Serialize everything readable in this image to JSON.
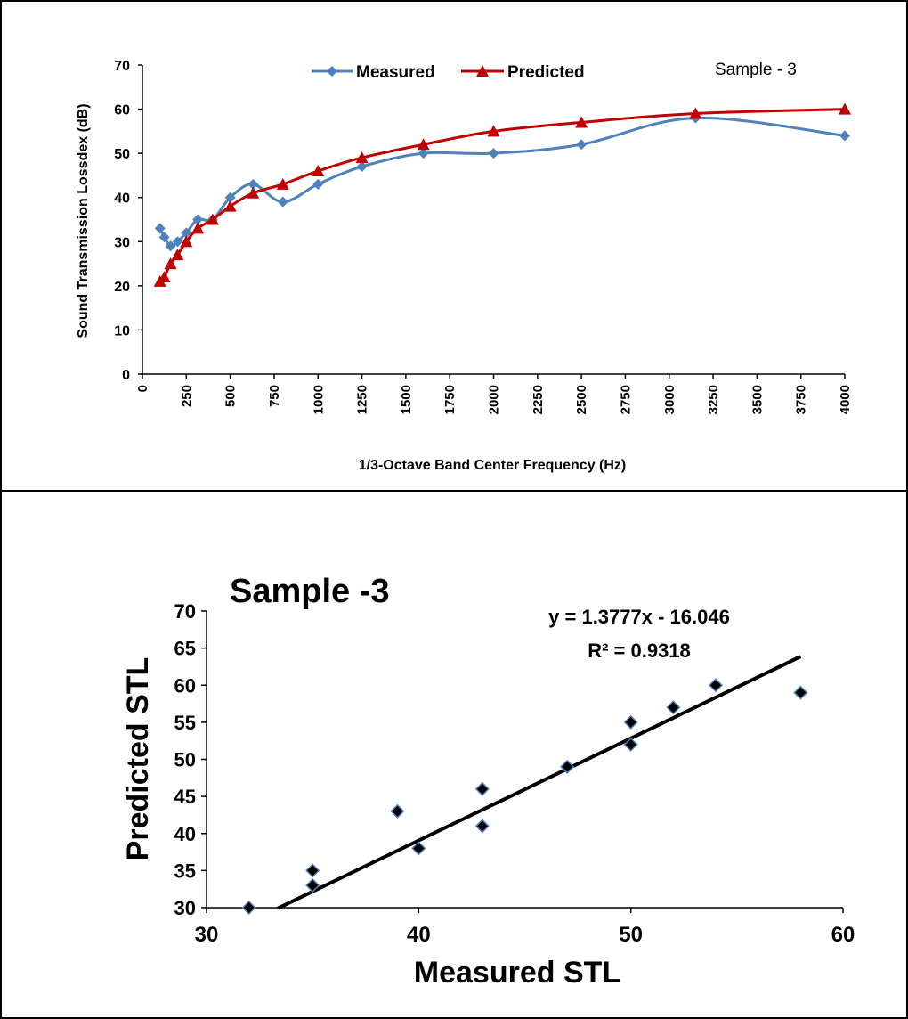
{
  "chart_data": [
    {
      "type": "line",
      "title": "",
      "annotation": "Sample - 3",
      "xlabel": "1/3-Octave Band Center Frequency (Hz)",
      "ylabel": "Sound Transmission Lossdex (dB)",
      "xlim": [
        0,
        4000
      ],
      "ylim": [
        0,
        70
      ],
      "xticks": [
        "0",
        "250",
        "500",
        "750",
        "1000",
        "1250",
        "1500",
        "1750",
        "2000",
        "2250",
        "2500",
        "2750",
        "3000",
        "3250",
        "3500",
        "3750",
        "4000"
      ],
      "yticks": [
        "0",
        "10",
        "20",
        "30",
        "40",
        "50",
        "60",
        "70"
      ],
      "grid": false,
      "legend_position": "top-center",
      "series": [
        {
          "name": "Measured",
          "color": "#4f81bd",
          "marker": "diamond",
          "x": [
            100,
            125,
            160,
            200,
            250,
            315,
            400,
            500,
            630,
            800,
            1000,
            1250,
            1600,
            2000,
            2500,
            3150,
            4000
          ],
          "y": [
            33,
            31,
            29,
            30,
            32,
            35,
            35,
            40,
            43,
            39,
            43,
            47,
            50,
            50,
            52,
            58,
            54
          ]
        },
        {
          "name": "Predicted",
          "color": "#c00000",
          "marker": "triangle",
          "x": [
            100,
            125,
            160,
            200,
            250,
            315,
            400,
            500,
            630,
            800,
            1000,
            1250,
            1600,
            2000,
            2500,
            3150,
            4000
          ],
          "y": [
            21,
            22,
            25,
            27,
            30,
            33,
            35,
            38,
            41,
            43,
            46,
            49,
            52,
            55,
            57,
            59,
            60
          ]
        }
      ]
    },
    {
      "type": "scatter",
      "title": "Sample -3",
      "xlabel": "Measured STL",
      "ylabel": "Predicted STL",
      "xlim": [
        30,
        60
      ],
      "ylim": [
        30,
        70
      ],
      "xticks": [
        "30",
        "40",
        "50",
        "60"
      ],
      "yticks": [
        "30",
        "35",
        "40",
        "45",
        "50",
        "55",
        "60",
        "65",
        "70"
      ],
      "grid": false,
      "marker_color": "#000000",
      "marker_edge": "#4f81bd",
      "points": {
        "x": [
          32,
          35,
          35,
          39,
          40,
          43,
          43,
          47,
          50,
          50,
          52,
          54,
          58
        ],
        "y": [
          30,
          33,
          35,
          43,
          38,
          41,
          46,
          49,
          52,
          55,
          57,
          60,
          59
        ]
      },
      "trendline": {
        "slope": 1.3777,
        "intercept": -16.046,
        "x_range": [
          33.36,
          58
        ],
        "equation": "y = 1.3777x - 16.046",
        "r_squared": "R² = 0.9318"
      }
    }
  ]
}
